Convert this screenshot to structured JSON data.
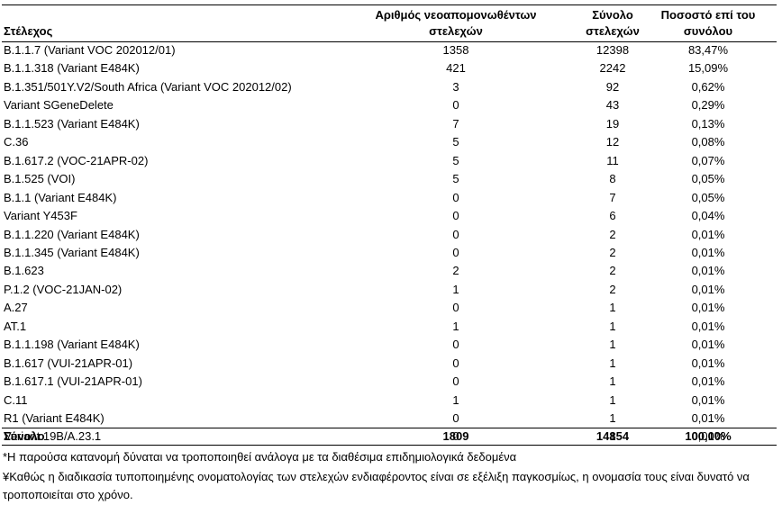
{
  "table": {
    "header": [
      "Στέλεχος",
      "Αριθμός νεοαπομονωθέντων στελεχών",
      "Σύνολο στελεχών",
      "Ποσοστό επί του συνόλου"
    ],
    "rows": [
      [
        "B.1.1.7 (Variant VOC 202012/01)",
        1358,
        12398,
        "83,47%"
      ],
      [
        "B.1.1.318 (Variant E484K)",
        421,
        2242,
        "15,09%"
      ],
      [
        "B.1.351/501Y.V2/South Africa (Variant VOC 202012/02)",
        3,
        92,
        "0,62%"
      ],
      [
        "Variant SGeneDelete",
        0,
        43,
        "0,29%"
      ],
      [
        "B.1.1.523 (Variant E484K)",
        7,
        19,
        "0,13%"
      ],
      [
        "C.36",
        5,
        12,
        "0,08%"
      ],
      [
        "B.1.617.2 (VOC-21APR-02)",
        5,
        11,
        "0,07%"
      ],
      [
        "B.1.525 (VOI)",
        5,
        8,
        "0,05%"
      ],
      [
        "B.1.1 (Variant E484K)",
        0,
        7,
        "0,05%"
      ],
      [
        "Variant Y453F",
        0,
        6,
        "0,04%"
      ],
      [
        "B.1.1.220 (Variant E484K)",
        0,
        2,
        "0,01%"
      ],
      [
        "B.1.1.345 (Variant E484K)",
        0,
        2,
        "0,01%"
      ],
      [
        "B.1.623",
        2,
        2,
        "0,01%"
      ],
      [
        "P.1.2 (VOC-21JAN-02)",
        1,
        2,
        "0,01%"
      ],
      [
        "A.27",
        0,
        1,
        "0,01%"
      ],
      [
        "AT.1",
        1,
        1,
        "0,01%"
      ],
      [
        "B.1.1.198 (Variant E484K)",
        0,
        1,
        "0,01%"
      ],
      [
        "B.1.617 (VUI-21APR-01)",
        0,
        1,
        "0,01%"
      ],
      [
        "B.1.617.1 (VUI-21APR-01)",
        0,
        1,
        "0,01%"
      ],
      [
        "C.11",
        1,
        1,
        "0,01%"
      ],
      [
        "R1 (Variant E484K)",
        0,
        1,
        "0,01%"
      ],
      [
        "Variant 19B/A.23.1",
        0,
        1,
        "0,01%"
      ]
    ],
    "total": [
      "Σύνολο",
      1809,
      14854,
      "100,00%"
    ]
  },
  "footnotes": [
    "*Η παρούσα κατανομή δύναται να τροποποιηθεί ανάλογα με τα διαθέσιμα επιδημιολογικά δεδομένα",
    "¥Καθώς η διαδικασία τυποποιημένης ονοματολογίας των στελεχών ενδιαφέροντος είναι σε εξέλιξη παγκοσμίως, η ονομασία τους είναι δυνατό να τροποποιείται στο χρόνο."
  ]
}
